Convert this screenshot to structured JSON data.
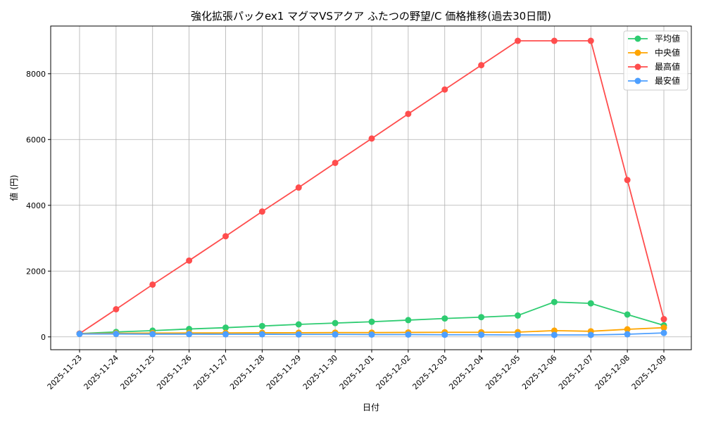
{
  "chart_data": {
    "type": "line",
    "title": "強化拡張パックex1 マグマVSアクア ふたつの野望/C 価格推移(過去30日間)",
    "xlabel": "日付",
    "ylabel": "値 (円)",
    "ylim": [
      -390,
      9450
    ],
    "yticks": [
      0,
      2000,
      4000,
      6000,
      8000
    ],
    "grid": true,
    "legend_position": "top-right",
    "categories": [
      "2025-11-23",
      "2025-11-24",
      "2025-11-25",
      "2025-11-26",
      "2025-11-27",
      "2025-11-28",
      "2025-11-29",
      "2025-11-30",
      "2025-12-01",
      "2025-12-02",
      "2025-12-03",
      "2025-12-04",
      "2025-12-05",
      "2025-12-06",
      "2025-12-07",
      "2025-12-08",
      "2025-12-09"
    ],
    "series": [
      {
        "name": "平均値",
        "color": "#2ecc71",
        "values": [
          100,
          150,
          190,
          240,
          280,
          330,
          380,
          420,
          460,
          510,
          560,
          600,
          650,
          1060,
          1020,
          680,
          350
        ]
      },
      {
        "name": "中央値",
        "color": "#ffa500",
        "values": [
          100,
          110,
          115,
          120,
          120,
          125,
          125,
          130,
          130,
          135,
          140,
          140,
          145,
          190,
          170,
          230,
          280
        ]
      },
      {
        "name": "最高値",
        "color": "#ff4d4d",
        "values": [
          100,
          840,
          1590,
          2320,
          3060,
          3810,
          4540,
          5290,
          6030,
          6780,
          7520,
          8260,
          9000,
          9000,
          9000,
          4770,
          540
        ]
      },
      {
        "name": "最安値",
        "color": "#4d9fff",
        "values": [
          90,
          90,
          85,
          85,
          80,
          80,
          75,
          75,
          70,
          70,
          65,
          65,
          60,
          60,
          60,
          80,
          120
        ]
      }
    ]
  }
}
